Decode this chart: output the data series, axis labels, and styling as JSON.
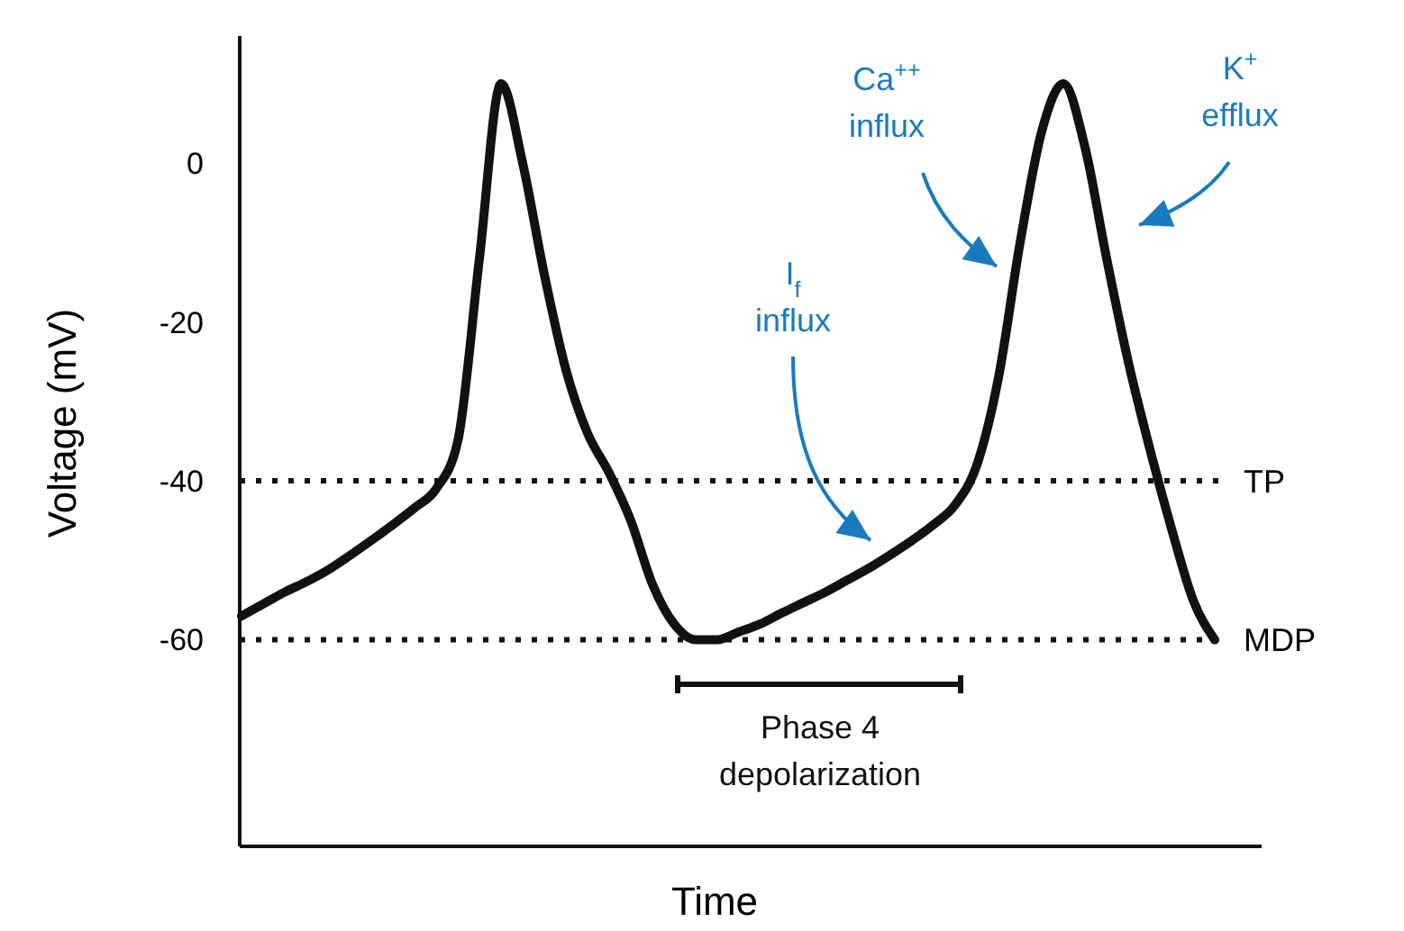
{
  "chart_data": {
    "type": "line",
    "xlabel": "Time",
    "ylabel": "Voltage (mV)",
    "categories": [
      null,
      null,
      null,
      null,
      null,
      null,
      null,
      null,
      null,
      null,
      null,
      null,
      null,
      null,
      null,
      null,
      null,
      null,
      null,
      null,
      null,
      null,
      null,
      null,
      null,
      null,
      null,
      null,
      null,
      null,
      null,
      null,
      null,
      null,
      null,
      null,
      null,
      null,
      null,
      null,
      null,
      null,
      null,
      null,
      null,
      null
    ],
    "series": [
      {
        "color": "#111111",
        "values": [
          -57,
          -55.5,
          -54,
          -52.7,
          -51.2,
          -49.4,
          -47.5,
          -45.5,
          -43.4,
          -41,
          -35,
          -12,
          10,
          0,
          -14,
          -26,
          -34,
          -39,
          -45,
          -53,
          -58,
          -60,
          -60,
          -59,
          -58,
          -56.6,
          -55.3,
          -54,
          -52.5,
          -51,
          -49.3,
          -47.5,
          -45.5,
          -43,
          -38,
          -27,
          -10,
          4,
          10,
          2,
          -12,
          -25,
          -36,
          -46,
          -55,
          -60
        ]
      }
    ],
    "ylim": [
      -86,
      16
    ],
    "yticks": [
      0,
      -20,
      -40,
      -60
    ],
    "tick_labels": "y",
    "grid": false,
    "marker": "none",
    "line_style": "solid",
    "ref_lines": [
      {
        "axis": "y",
        "value": -40,
        "label": "TP",
        "line_style": "dotted",
        "color": "#111111"
      },
      {
        "axis": "y",
        "value": -60,
        "label": "MDP",
        "line_style": "dotted",
        "color": "#111111"
      }
    ],
    "annotations": [
      "I$_{f}$\ninflux",
      "Ca$^{++}$\ninflux",
      "K$^{+}$\nefflux",
      "Phase 4\ndepolarization"
    ]
  }
}
